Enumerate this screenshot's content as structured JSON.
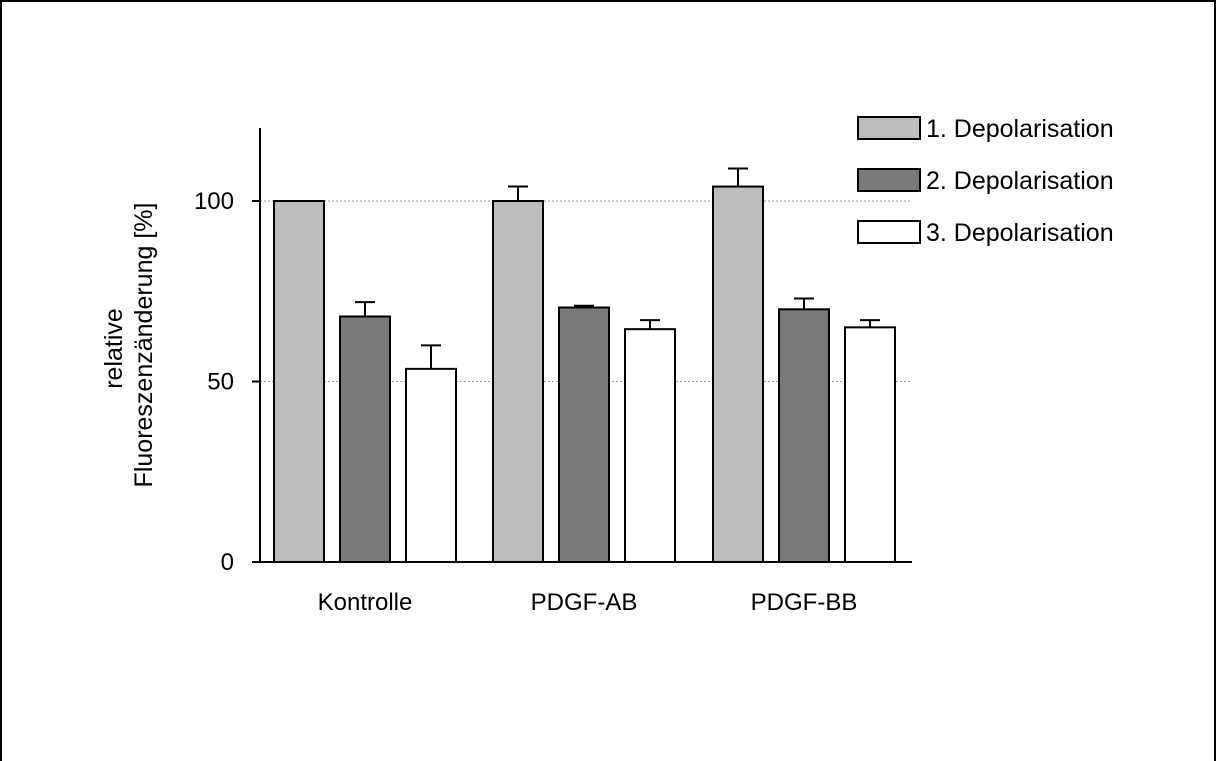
{
  "chart_data": {
    "type": "bar",
    "title": "",
    "xlabel": "",
    "ylabel": [
      "relative",
      "Fluoreszenzänderung [%]"
    ],
    "categories": [
      "Kontrolle",
      "PDGF-AB",
      "PDGF-BB"
    ],
    "series": [
      {
        "name": "1. Depolarisation",
        "color": "#bdbdbd",
        "values": [
          100,
          100,
          104
        ],
        "errors": [
          0,
          4,
          5
        ]
      },
      {
        "name": "2. Depolarisation",
        "color": "#7a7a7a",
        "values": [
          68,
          70.5,
          70
        ],
        "errors": [
          4,
          0.5,
          3
        ]
      },
      {
        "name": "3. Depolarisation",
        "color": "#ffffff",
        "values": [
          53.5,
          64.5,
          65
        ],
        "errors": [
          6.5,
          2.5,
          2
        ]
      }
    ],
    "ylim": [
      0,
      120
    ],
    "yticks": [
      0,
      50,
      100
    ],
    "gridlines": [
      50,
      100
    ],
    "grid": "dotted at 50 and 100",
    "legend": "top-right"
  }
}
